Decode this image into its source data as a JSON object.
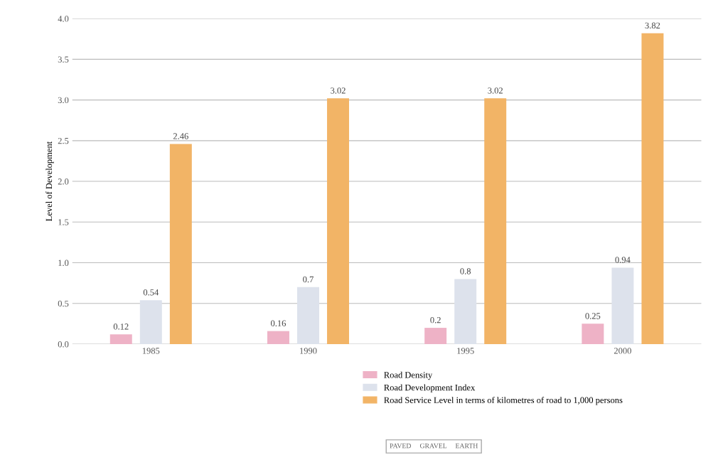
{
  "chart_data": {
    "type": "bar",
    "ylabel": "Level of Development",
    "categories": [
      "1985",
      "1990",
      "1995",
      "2000"
    ],
    "series": [
      {
        "name": "Road Density",
        "color": "#eeb2c6",
        "values": [
          0.12,
          0.16,
          0.2,
          0.25
        ]
      },
      {
        "name": "Road Development Index",
        "color": "#dde2ec",
        "values": [
          0.54,
          0.7,
          0.8,
          0.94
        ]
      },
      {
        "name": "Road Service Level in terms of kilometres of road to 1,000 persons",
        "color": "#f2b466",
        "values": [
          2.46,
          3.02,
          3.02,
          3.82
        ]
      }
    ],
    "ylim": [
      0,
      4.0
    ],
    "yticks": [
      {
        "value": 0,
        "label": "0.0"
      },
      0.5,
      {
        "value": 1,
        "label": "1.0"
      },
      1.5,
      {
        "value": 2,
        "label": "2.0"
      },
      2.5,
      {
        "value": 3,
        "label": "3.0"
      },
      3.5,
      {
        "value": 4,
        "label": "4.0"
      }
    ],
    "grid": "y",
    "legend": "bottom",
    "data_labels": true,
    "annotations": [
      "PAVED",
      "GRAVEL",
      "EARTH"
    ]
  }
}
